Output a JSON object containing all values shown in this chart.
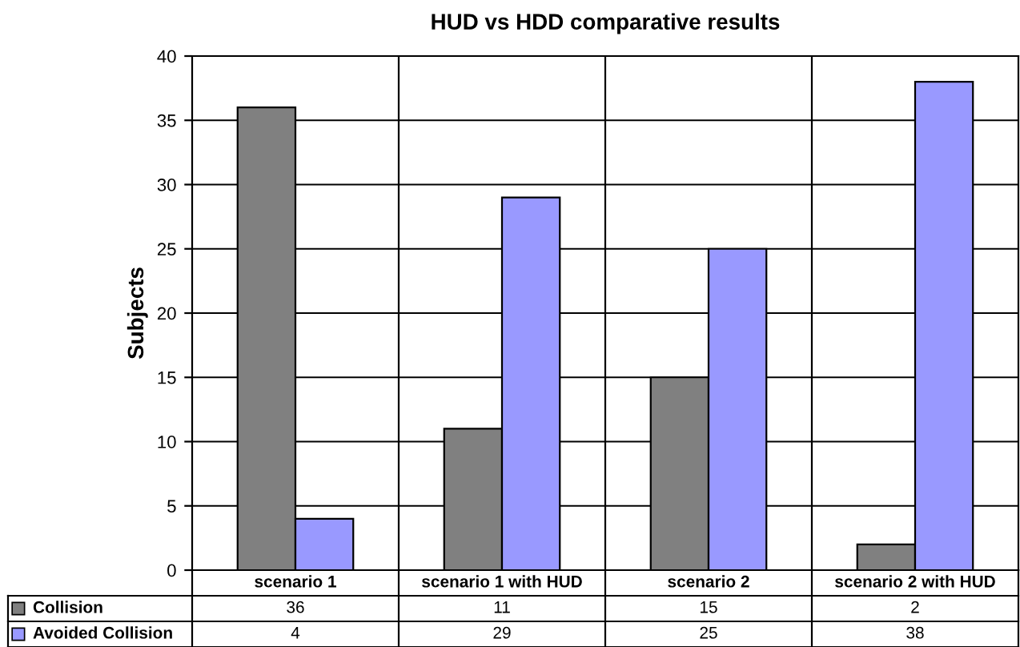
{
  "chart_data": {
    "type": "bar",
    "title": "HUD vs HDD comparative results",
    "ylabel": "Subjects",
    "categories": [
      "scenario 1",
      "scenario 1 with HUD",
      "scenario 2",
      "scenario 2 with HUD"
    ],
    "series": [
      {
        "name": "Collision",
        "color": "#808080",
        "values": [
          36,
          11,
          15,
          2
        ]
      },
      {
        "name": "Avoided Collision",
        "color": "#9999ff",
        "values": [
          4,
          29,
          25,
          38
        ]
      }
    ],
    "ylim": [
      0,
      40
    ],
    "yticks": [
      0,
      5,
      10,
      15,
      20,
      25,
      30,
      35,
      40
    ],
    "grid": "y",
    "data_labels": true,
    "legend": "bottom"
  }
}
